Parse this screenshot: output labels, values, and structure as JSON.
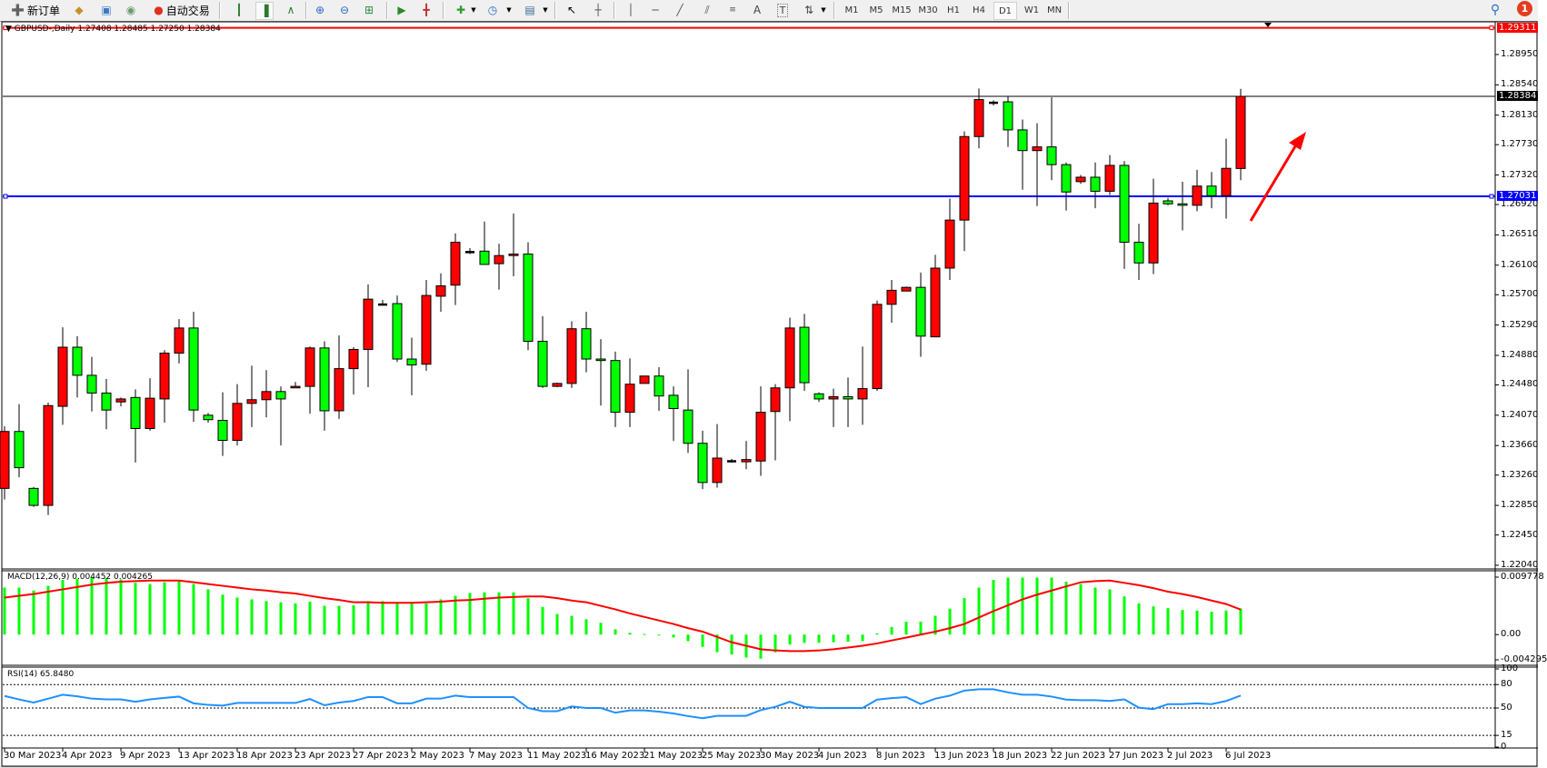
{
  "toolbar": {
    "new_order_label": "新订单",
    "auto_trading_label": "自动交易",
    "timeframes": [
      "M1",
      "M5",
      "M15",
      "M30",
      "H1",
      "H4",
      "D1",
      "W1",
      "MN"
    ],
    "active_timeframe": "D1",
    "notification_count": "1",
    "text_tool_label": "T",
    "label_tool_label": "A"
  },
  "chart": {
    "title": "GBPUSD-,Daily  1.27408 1.28485 1.27250 1.28384",
    "colors": {
      "bull": "#ff0000",
      "bear": "#00ff00",
      "bid_line": "#000000",
      "resistance_line": "#ff0000",
      "support_line": "#0000ff",
      "arrow": "#ff0000"
    },
    "price_ticks": [
      "1.28950",
      "1.28540",
      "1.28130",
      "1.27730",
      "1.27320",
      "1.26920",
      "1.26510",
      "1.26100",
      "1.25700",
      "1.25290",
      "1.24880",
      "1.24480",
      "1.24070",
      "1.23660",
      "1.23260",
      "1.22850",
      "1.22450",
      "1.22040"
    ],
    "bid_price": "1.28384",
    "resistance_price": "1.29311",
    "support_price": "1.27031",
    "ylim": [
      1.2199,
      1.2938
    ],
    "annotation": "up-arrow"
  },
  "chart_data": {
    "type": "candlestick",
    "symbol": "GBPUSD-",
    "timeframe": "Daily",
    "ohlc": [
      [
        1.2308,
        1.2392,
        1.2293,
        1.2385
      ],
      [
        1.2385,
        1.2422,
        1.2323,
        1.2336
      ],
      [
        1.2308,
        1.231,
        1.2283,
        1.2285
      ],
      [
        1.2285,
        1.2424,
        1.2272,
        1.242
      ],
      [
        1.2419,
        1.2526,
        1.2394,
        1.2499
      ],
      [
        1.2499,
        1.2514,
        1.2431,
        1.2461
      ],
      [
        1.2461,
        1.2486,
        1.2412,
        1.2437
      ],
      [
        1.2437,
        1.2456,
        1.2388,
        1.2414
      ],
      [
        1.2425,
        1.2431,
        1.2419,
        1.2429
      ],
      [
        1.2431,
        1.2442,
        1.2343,
        1.2389
      ],
      [
        1.2389,
        1.2457,
        1.2386,
        1.243
      ],
      [
        1.2429,
        1.2495,
        1.2397,
        1.2491
      ],
      [
        1.2491,
        1.2537,
        1.2477,
        1.2525
      ],
      [
        1.2525,
        1.2547,
        1.2398,
        1.2414
      ],
      [
        1.2407,
        1.241,
        1.2397,
        1.2401
      ],
      [
        1.24,
        1.2438,
        1.2352,
        1.2373
      ],
      [
        1.2373,
        1.2449,
        1.2366,
        1.2423
      ],
      [
        1.2423,
        1.2474,
        1.2391,
        1.2428
      ],
      [
        1.2428,
        1.2468,
        1.2404,
        1.2439
      ],
      [
        1.2439,
        1.2446,
        1.2366,
        1.2429
      ],
      [
        1.2444,
        1.2452,
        1.2444,
        1.2446
      ],
      [
        1.2446,
        1.25,
        1.2409,
        1.2498
      ],
      [
        1.2498,
        1.2507,
        1.2386,
        1.2413
      ],
      [
        1.2413,
        1.2515,
        1.2402,
        1.247
      ],
      [
        1.247,
        1.2499,
        1.2435,
        1.2496
      ],
      [
        1.2496,
        1.2584,
        1.2445,
        1.2564
      ],
      [
        1.2557,
        1.2563,
        1.2556,
        1.2557
      ],
      [
        1.2558,
        1.2569,
        1.2479,
        1.2483
      ],
      [
        1.2483,
        1.2512,
        1.2434,
        1.2475
      ],
      [
        1.2476,
        1.259,
        1.2467,
        1.2569
      ],
      [
        1.2568,
        1.2599,
        1.2547,
        1.2582
      ],
      [
        1.2583,
        1.2653,
        1.2556,
        1.2641
      ],
      [
        1.2628,
        1.2633,
        1.2625,
        1.2628
      ],
      [
        1.2629,
        1.2669,
        1.2611,
        1.2611
      ],
      [
        1.2612,
        1.2639,
        1.2577,
        1.2623
      ],
      [
        1.2623,
        1.268,
        1.2595,
        1.2625
      ],
      [
        1.2625,
        1.2641,
        1.2495,
        1.2507
      ],
      [
        1.2507,
        1.2541,
        1.2444,
        1.2446
      ],
      [
        1.2446,
        1.2451,
        1.2445,
        1.245
      ],
      [
        1.245,
        1.2534,
        1.2444,
        1.2524
      ],
      [
        1.2524,
        1.2547,
        1.2465,
        1.2483
      ],
      [
        1.2483,
        1.251,
        1.242,
        1.2481
      ],
      [
        1.2481,
        1.2493,
        1.2391,
        1.2411
      ],
      [
        1.2411,
        1.2484,
        1.2391,
        1.2449
      ],
      [
        1.245,
        1.246,
        1.245,
        1.246
      ],
      [
        1.246,
        1.2472,
        1.2413,
        1.2433
      ],
      [
        1.2434,
        1.2446,
        1.2372,
        1.2416
      ],
      [
        1.2414,
        1.2469,
        1.2356,
        1.2369
      ],
      [
        1.2369,
        1.2386,
        1.2307,
        1.2316
      ],
      [
        1.2316,
        1.2395,
        1.2309,
        1.2349
      ],
      [
        1.2345,
        1.2348,
        1.2343,
        1.2345
      ],
      [
        1.2344,
        1.2372,
        1.2334,
        1.2347
      ],
      [
        1.2345,
        1.2446,
        1.2325,
        1.2411
      ],
      [
        1.2412,
        1.2449,
        1.2346,
        1.2444
      ],
      [
        1.2444,
        1.2539,
        1.2399,
        1.2525
      ],
      [
        1.2526,
        1.2544,
        1.244,
        1.2451
      ],
      [
        1.2436,
        1.2438,
        1.2425,
        1.2429
      ],
      [
        1.2429,
        1.2443,
        1.2391,
        1.2432
      ],
      [
        1.2432,
        1.2458,
        1.2391,
        1.2429
      ],
      [
        1.2429,
        1.25,
        1.2394,
        1.2443
      ],
      [
        1.2443,
        1.2562,
        1.244,
        1.2557
      ],
      [
        1.2557,
        1.259,
        1.2532,
        1.2576
      ],
      [
        1.2575,
        1.2581,
        1.2575,
        1.258
      ],
      [
        1.258,
        1.26,
        1.2486,
        1.2514
      ],
      [
        1.2513,
        1.2624,
        1.2513,
        1.2606
      ],
      [
        1.2606,
        1.27,
        1.259,
        1.2671
      ],
      [
        1.2671,
        1.2791,
        1.2629,
        1.2784
      ],
      [
        1.2784,
        1.2849,
        1.2768,
        1.2834
      ],
      [
        1.283,
        1.2833,
        1.2826,
        1.283
      ],
      [
        1.2831,
        1.2839,
        1.277,
        1.2793
      ],
      [
        1.2793,
        1.2807,
        1.2712,
        1.2765
      ],
      [
        1.2765,
        1.2802,
        1.269,
        1.277
      ],
      [
        1.277,
        1.2837,
        1.2725,
        1.2746
      ],
      [
        1.2746,
        1.2749,
        1.2684,
        1.2709
      ],
      [
        1.2723,
        1.2732,
        1.272,
        1.2729
      ],
      [
        1.2729,
        1.2749,
        1.2687,
        1.271
      ],
      [
        1.271,
        1.2759,
        1.2705,
        1.2745
      ],
      [
        1.2745,
        1.2751,
        1.2605,
        1.2641
      ],
      [
        1.2641,
        1.2666,
        1.259,
        1.2613
      ],
      [
        1.2613,
        1.2727,
        1.2598,
        1.2694
      ],
      [
        1.2697,
        1.2701,
        1.2691,
        1.2693
      ],
      [
        1.2693,
        1.2723,
        1.2657,
        1.2691
      ],
      [
        1.2691,
        1.2739,
        1.2683,
        1.2717
      ],
      [
        1.2717,
        1.2736,
        1.2687,
        1.2704
      ],
      [
        1.2704,
        1.2781,
        1.2673,
        1.2741
      ],
      [
        1.27408,
        1.28485,
        1.2725,
        1.28384
      ]
    ],
    "x_labels": [
      {
        "bar": 0,
        "label": "30 Mar 2023"
      },
      {
        "bar": 4,
        "label": "4 Apr 2023"
      },
      {
        "bar": 8,
        "label": "9 Apr 2023"
      },
      {
        "bar": 12,
        "label": "13 Apr 2023"
      },
      {
        "bar": 16,
        "label": "18 Apr 2023"
      },
      {
        "bar": 20,
        "label": "23 Apr 2023"
      },
      {
        "bar": 24,
        "label": "27 Apr 2023"
      },
      {
        "bar": 28,
        "label": "2 May 2023"
      },
      {
        "bar": 32,
        "label": "7 May 2023"
      },
      {
        "bar": 36,
        "label": "11 May 2023"
      },
      {
        "bar": 40,
        "label": "16 May 2023"
      },
      {
        "bar": 44,
        "label": "21 May 2023"
      },
      {
        "bar": 48,
        "label": "25 May 2023"
      },
      {
        "bar": 52,
        "label": "30 May 2023"
      },
      {
        "bar": 56,
        "label": "4 Jun 2023"
      },
      {
        "bar": 60,
        "label": "8 Jun 2023"
      },
      {
        "bar": 64,
        "label": "13 Jun 2023"
      },
      {
        "bar": 68,
        "label": "18 Jun 2023"
      },
      {
        "bar": 72,
        "label": "22 Jun 2023"
      },
      {
        "bar": 76,
        "label": "27 Jun 2023"
      },
      {
        "bar": 80,
        "label": "2 Jul 2023"
      },
      {
        "bar": 84,
        "label": "6 Jul 2023"
      }
    ],
    "macd": {
      "label": "MACD(12,26,9) 0.004452 0.004265",
      "ticks": [
        "0.009778",
        "0.00",
        "-0.004295"
      ],
      "ylim": [
        -0.004295,
        0.009778
      ],
      "histogram": [
        0.008,
        0.008,
        0.0075,
        0.0083,
        0.0093,
        0.0095,
        0.0097,
        0.0096,
        0.0094,
        0.0088,
        0.0086,
        0.0089,
        0.0091,
        0.0086,
        0.0077,
        0.0068,
        0.0063,
        0.006,
        0.0057,
        0.0055,
        0.0053,
        0.0056,
        0.0049,
        0.0049,
        0.005,
        0.0057,
        0.0057,
        0.0055,
        0.0053,
        0.0053,
        0.006,
        0.0066,
        0.0071,
        0.0072,
        0.0072,
        0.0072,
        0.0062,
        0.0047,
        0.0035,
        0.0032,
        0.0026,
        0.002,
        0.0009,
        0.0003,
        0.0001,
        -0.0001,
        -0.0005,
        -0.0011,
        -0.0021,
        -0.003,
        -0.0034,
        -0.0039,
        -0.0041,
        -0.003,
        -0.0017,
        -0.0014,
        -0.0014,
        -0.0013,
        -0.0012,
        -0.0011,
        0.0002,
        0.0013,
        0.0022,
        0.0022,
        0.0032,
        0.0044,
        0.0062,
        0.008,
        0.0093,
        0.0097,
        0.0097,
        0.0097,
        0.0097,
        0.009,
        0.0086,
        0.008,
        0.0077,
        0.0065,
        0.0053,
        0.0048,
        0.0045,
        0.0042,
        0.0041,
        0.0039,
        0.0041,
        0.004452
      ],
      "signal": [
        0.0063,
        0.0066,
        0.0069,
        0.0073,
        0.0077,
        0.0081,
        0.0085,
        0.0088,
        0.009,
        0.0091,
        0.0092,
        0.0092,
        0.0092,
        0.0089,
        0.0086,
        0.0083,
        0.008,
        0.0077,
        0.0075,
        0.0072,
        0.007,
        0.0066,
        0.0062,
        0.0059,
        0.0055,
        0.0055,
        0.0054,
        0.0054,
        0.0054,
        0.0055,
        0.0056,
        0.0058,
        0.0059,
        0.0061,
        0.0063,
        0.0064,
        0.0065,
        0.0065,
        0.0062,
        0.0058,
        0.0055,
        0.0049,
        0.0043,
        0.0036,
        0.003,
        0.0024,
        0.0018,
        0.0011,
        0.0005,
        -0.0004,
        -0.0013,
        -0.0019,
        -0.0025,
        -0.0027,
        -0.0028,
        -0.0028,
        -0.0027,
        -0.0025,
        -0.0022,
        -0.0019,
        -0.0015,
        -0.001,
        -0.0005,
        0.0,
        0.0005,
        0.0011,
        0.0018,
        0.0029,
        0.004,
        0.005,
        0.006,
        0.0068,
        0.0075,
        0.0082,
        0.0089,
        0.0091,
        0.0092,
        0.0088,
        0.0084,
        0.0079,
        0.0073,
        0.0069,
        0.0064,
        0.0058,
        0.0052,
        0.004265
      ],
      "histogram_color": "#00ff00",
      "signal_color": "#ff0000"
    },
    "rsi": {
      "label": "RSI(14) 65.8480",
      "ticks": [
        "100",
        "80",
        "50",
        "15",
        "0"
      ],
      "levels": [
        80,
        50,
        15
      ],
      "ylim": [
        0,
        100
      ],
      "color": "#1e90ff",
      "values": [
        65.4,
        61,
        57,
        62,
        67,
        65,
        62,
        61,
        61,
        58,
        61,
        63,
        64.6,
        56,
        54,
        53,
        56.5,
        56.5,
        56.5,
        56.5,
        56.5,
        61.5,
        53.5,
        57,
        59,
        64,
        64,
        56,
        56,
        62,
        62,
        65.8,
        64,
        64,
        64,
        64,
        50,
        46,
        46,
        52,
        50,
        50,
        44,
        47,
        47,
        45.4,
        43,
        39.6,
        37,
        40,
        40,
        40,
        47.3,
        51.5,
        58,
        51.5,
        50,
        50,
        50,
        50,
        60.8,
        62.7,
        64,
        55,
        62,
        65.8,
        72.3,
        74,
        74,
        70,
        67,
        67,
        64.6,
        60.8,
        60,
        60,
        59,
        61,
        50.4,
        48.5,
        55,
        55,
        56,
        55,
        59,
        65.848
      ]
    }
  }
}
